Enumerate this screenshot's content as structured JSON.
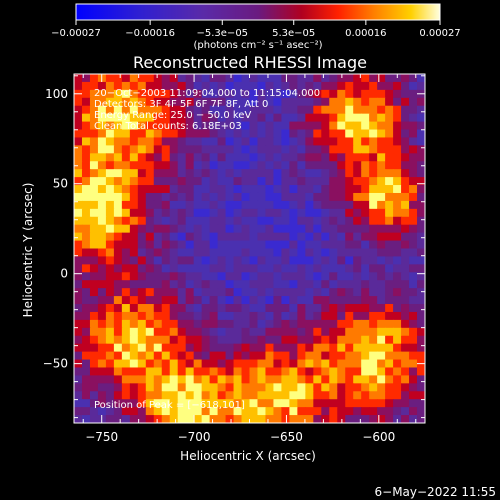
{
  "chart_data": {
    "type": "heatmap",
    "title": "Reconstructed RHESSI Image",
    "xlabel": "Heliocentric X (arcsec)",
    "ylabel": "Heliocentric Y (arcsec)",
    "xlim": [
      -765,
      -575
    ],
    "ylim": [
      -83,
      111
    ],
    "xticks": [
      -750,
      -700,
      -650,
      -600
    ],
    "yticks": [
      100,
      50,
      0,
      -50
    ],
    "xtick_labels": [
      "−750",
      "−700",
      "−650",
      "−600"
    ],
    "ytick_labels": [
      "100",
      "50",
      "0",
      "−50"
    ],
    "colorbar": {
      "min": -0.00027,
      "max": 0.00027,
      "tick_values": [
        -0.00027,
        -0.00016,
        -5.3e-05,
        5.3e-05,
        0.00016,
        0.00027
      ],
      "tick_labels": [
        "−0.00027",
        "−0.00016",
        "−5.3e−05",
        "5.3e−05",
        "0.00016",
        "0.00027"
      ],
      "unit_label": "(photons cm⁻² s⁻¹ asec⁻²)"
    },
    "annotations": [
      "20−Oct−2003 11:09:04.000 to 11:15:04.000",
      "Detectors: 3F 4F 5F 6F 7F 8F, Att 0",
      "Energy Range: 25.0 − 50.0 keV",
      "Clean    Total counts: 6.18E+03"
    ],
    "peak_label": "Position of Peak = [−618,101]",
    "footer_date": "6−May−2022 11:55"
  }
}
